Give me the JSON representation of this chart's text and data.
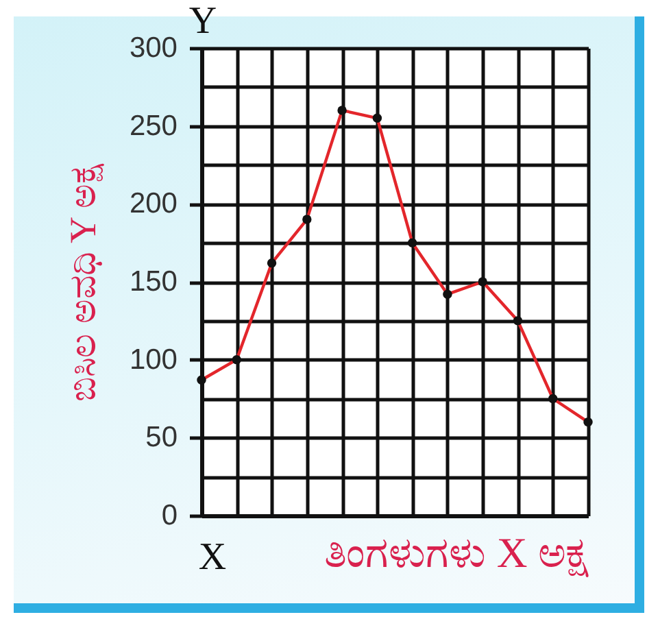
{
  "chart_data": {
    "type": "line",
    "ylabel": "ಬಿಸಿಲ ಅವಧಿ Y ಅಕ್ಷ",
    "xlabel": "ತಿಂಗಳುಗಳು X ಅಕ್ಷ",
    "annotations": [
      "Y",
      "X"
    ],
    "categories": [
      null,
      null,
      null,
      null,
      null,
      null,
      null,
      null,
      null,
      null,
      null,
      null
    ],
    "series": [
      {
        "color": "#e3262b",
        "values": [
          87,
          100,
          162,
          190,
          260,
          255,
          175,
          142,
          150,
          125,
          75,
          60
        ]
      }
    ],
    "ylim": [
      0,
      300
    ],
    "yticks": [
      0,
      {
        "value": 25,
        "label": null
      },
      50,
      {
        "value": 75,
        "label": null
      },
      100,
      {
        "value": 125,
        "label": null
      },
      150,
      {
        "value": 175,
        "label": null
      },
      200,
      {
        "value": 225,
        "label": null
      },
      250,
      {
        "value": 275,
        "label": null
      },
      300
    ],
    "grid": true,
    "tick_labels": "y",
    "marker": "circle",
    "line_style": "solid"
  }
}
